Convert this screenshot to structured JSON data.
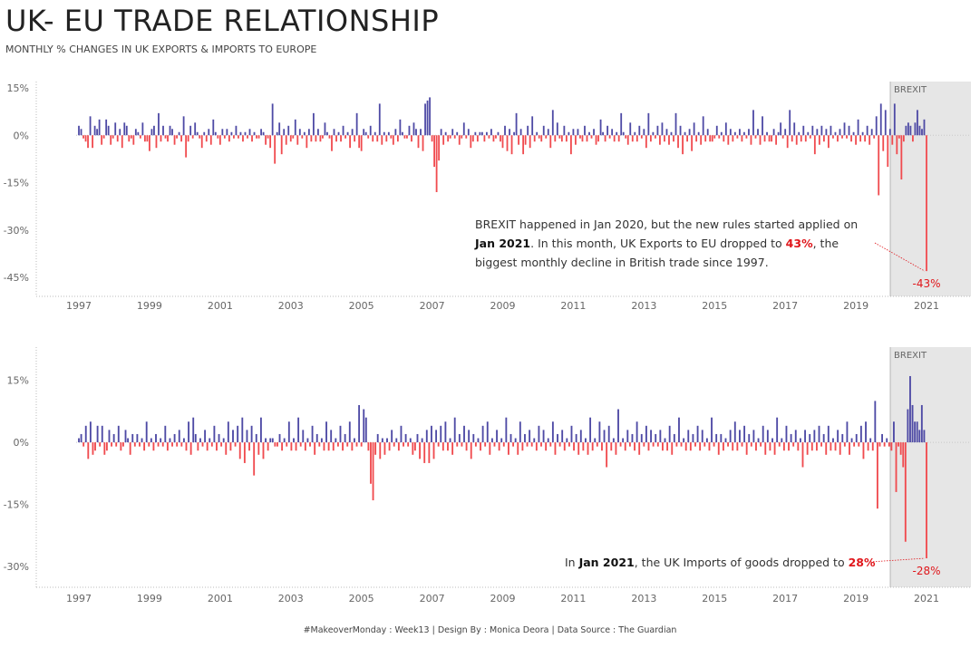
{
  "title": "UK- EU TRADE RELATIONSHIP",
  "subtitle": "MONTHLY % CHANGES IN UK EXPORTS & IMPORTS TO EUROPE",
  "footer": "#MakeoverMonday : Week13 | Design By : Monica Deora | Data Source : The Guardian",
  "colors": {
    "positive": "#4e4aa5",
    "negative": "#f04b4f",
    "brexit_band": "#e6e6e6",
    "highlight": "#e0161b"
  },
  "exports_annotation": {
    "line1": "BREXIT happened in Jan 2020, but the new rules started applied on",
    "bold1": "Jan 2021",
    "mid": ". In this month, UK Exports to EU dropped to ",
    "red": "43%",
    "tail": ", the",
    "line3": "biggest monthly decline in British trade since 1997."
  },
  "imports_annotation": {
    "pre": "In ",
    "bold": "Jan 2021",
    "mid": ", the UK Imports of goods dropped to ",
    "red": "28%"
  },
  "chart_data": [
    {
      "type": "bar",
      "title": "",
      "xlabel": "",
      "ylabel": "",
      "x_ticks": [
        "1997",
        "1999",
        "2001",
        "2003",
        "2005",
        "2007",
        "2009",
        "2011",
        "2013",
        "2015",
        "2017",
        "2019",
        "2021"
      ],
      "y_ticks": [
        "15%",
        "0%",
        "-15%",
        "-30%",
        "-45%"
      ],
      "y_tick_values": [
        15,
        0,
        -15,
        -30,
        -45
      ],
      "ylim": [
        -51,
        17
      ],
      "x_start": "1997-01",
      "x_end": "2021-01",
      "brexit_label": "BREXIT",
      "brexit_start": "2020-01",
      "end_label": "-43%",
      "grid": false,
      "series": [
        {
          "values": [
            3,
            2,
            -1,
            -2,
            -4,
            6,
            -4,
            3,
            2,
            5,
            -3,
            -1,
            5,
            3,
            -3,
            -1,
            4,
            -2,
            2,
            -4,
            4,
            3,
            -2,
            -1,
            -3,
            2,
            1,
            -1,
            4,
            -2,
            -2,
            -5,
            2,
            3,
            -4,
            7,
            -2,
            3,
            -1,
            -2,
            3,
            2,
            -3,
            -1,
            1,
            -2,
            6,
            -7,
            -2,
            3,
            -1,
            4,
            1,
            -1,
            -4,
            1,
            -2,
            2,
            -3,
            5,
            1,
            -1,
            -3,
            2,
            -1,
            2,
            -2,
            1,
            -1,
            3,
            -1,
            1,
            -2,
            1,
            -1,
            2,
            -2,
            1,
            -1,
            -1,
            2,
            1,
            -3,
            -1,
            -4,
            10,
            -9,
            1,
            4,
            -6,
            2,
            -3,
            3,
            -2,
            -1,
            5,
            -3,
            2,
            -1,
            1,
            -4,
            2,
            -2,
            7,
            -2,
            2,
            -2,
            -1,
            4,
            1,
            -1,
            -5,
            2,
            -2,
            1,
            -2,
            3,
            -1,
            1,
            -4,
            2,
            -2,
            7,
            -4,
            -5,
            2,
            1,
            -1,
            3,
            -2,
            1,
            -2,
            10,
            -3,
            1,
            -2,
            1,
            -1,
            -3,
            2,
            -2,
            5,
            1,
            -1,
            -1,
            3,
            -2,
            4,
            2,
            -4,
            2,
            -5,
            10,
            11,
            12,
            -2,
            -10,
            -18,
            -8,
            2,
            -3,
            1,
            -2,
            -1,
            2,
            -1,
            1,
            -3,
            -1,
            4,
            -1,
            2,
            -4,
            -2,
            1,
            -2,
            1,
            1,
            -2,
            1,
            -1,
            2,
            -2,
            -1,
            1,
            -2,
            -4,
            3,
            -5,
            2,
            -6,
            1,
            7,
            -3,
            2,
            -6,
            -3,
            3,
            -4,
            6,
            -2,
            1,
            -1,
            -2,
            3,
            -1,
            2,
            -4,
            8,
            -2,
            4,
            -1,
            -2,
            3,
            -2,
            1,
            -6,
            2,
            -3,
            2,
            -1,
            -2,
            3,
            -2,
            1,
            -1,
            2,
            -3,
            -2,
            5,
            1,
            -2,
            3,
            -1,
            2,
            -2,
            1,
            -2,
            7,
            1,
            -1,
            -3,
            4,
            -2,
            1,
            -2,
            3,
            -1,
            2,
            -4,
            7,
            -2,
            1,
            -1,
            3,
            -3,
            4,
            -2,
            2,
            -3,
            1,
            -2,
            7,
            -4,
            3,
            -6,
            1,
            -2,
            2,
            -5,
            4,
            -2,
            1,
            -3,
            6,
            -2,
            2,
            -2,
            -2,
            -1,
            3,
            -1,
            1,
            -2,
            4,
            -3,
            2,
            -2,
            1,
            -1,
            2,
            -2,
            1,
            -1,
            2,
            -3,
            8,
            -1,
            2,
            -3,
            6,
            -2,
            1,
            -2,
            -2,
            2,
            -3,
            1,
            4,
            -1,
            2,
            -4,
            8,
            -2,
            4,
            -3,
            1,
            -2,
            3,
            -2,
            1,
            -1,
            3,
            -6,
            2,
            -3,
            3,
            -2,
            2,
            -4,
            3,
            -1,
            1,
            -2,
            2,
            -1,
            4,
            -1,
            3,
            -2,
            1,
            -3,
            5,
            -2,
            1,
            -2,
            3,
            -3,
            2,
            -1,
            6,
            -19,
            10,
            -5,
            8,
            -10,
            2,
            -3,
            10,
            -6,
            -1,
            -14,
            -2,
            3,
            4,
            3,
            -2,
            4,
            8,
            3,
            2,
            5,
            -43
          ],
          "end_value": -43
        }
      ]
    },
    {
      "type": "bar",
      "title": "",
      "xlabel": "",
      "ylabel": "",
      "x_ticks": [
        "1997",
        "1999",
        "2001",
        "2003",
        "2005",
        "2007",
        "2009",
        "2011",
        "2013",
        "2015",
        "2017",
        "2019",
        "2021"
      ],
      "y_ticks": [
        "15%",
        "0%",
        "-15%",
        "-30%"
      ],
      "y_tick_values": [
        15,
        0,
        -15,
        -30
      ],
      "ylim": [
        -35,
        23
      ],
      "x_start": "1997-01",
      "x_end": "2021-01",
      "brexit_label": "BREXIT",
      "brexit_start": "2020-01",
      "end_label": "-28%",
      "grid": false,
      "series": [
        {
          "values": [
            1,
            2,
            -1,
            4,
            -4,
            5,
            -3,
            -2,
            4,
            -1,
            4,
            -3,
            -2,
            3,
            -1,
            2,
            -1,
            4,
            -2,
            -1,
            3,
            1,
            -3,
            2,
            -1,
            2,
            -1,
            1,
            -2,
            5,
            -1,
            1,
            -2,
            2,
            -1,
            1,
            -1,
            4,
            -2,
            1,
            -1,
            2,
            -1,
            3,
            -1,
            1,
            -2,
            5,
            -3,
            6,
            2,
            -2,
            1,
            -1,
            3,
            -2,
            1,
            -1,
            4,
            -2,
            2,
            -1,
            1,
            -3,
            5,
            -2,
            3,
            -1,
            4,
            -4,
            6,
            -5,
            3,
            -2,
            4,
            -8,
            2,
            -3,
            6,
            -4,
            1,
            -2,
            1,
            1,
            -1,
            -1,
            2,
            -2,
            1,
            -1,
            5,
            -2,
            1,
            -2,
            6,
            -1,
            3,
            -2,
            1,
            -1,
            4,
            -3,
            2,
            -1,
            1,
            -2,
            5,
            -2,
            3,
            -2,
            1,
            -1,
            4,
            -2,
            2,
            -1,
            5,
            -2,
            1,
            -1,
            9,
            -1,
            8,
            6,
            -2,
            -10,
            -14,
            -3,
            2,
            -4,
            1,
            -3,
            1,
            -2,
            3,
            -1,
            1,
            -2,
            4,
            -1,
            2,
            -1,
            1,
            -3,
            -2,
            2,
            -4,
            1,
            -5,
            3,
            -5,
            4,
            -4,
            3,
            -1,
            4,
            -2,
            5,
            -2,
            1,
            -3,
            6,
            -1,
            2,
            -1,
            4,
            -2,
            3,
            -4,
            2,
            -1,
            1,
            -2,
            4,
            -1,
            5,
            -3,
            1,
            -1,
            3,
            -2,
            1,
            -1,
            6,
            -3,
            2,
            -1,
            1,
            -3,
            5,
            -2,
            2,
            -1,
            3,
            -1,
            1,
            -2,
            4,
            -1,
            3,
            -2,
            1,
            -1,
            5,
            -3,
            2,
            -1,
            3,
            -2,
            1,
            -1,
            4,
            -2,
            2,
            -3,
            3,
            -2,
            1,
            -3,
            6,
            -2,
            1,
            -1,
            5,
            -2,
            3,
            -6,
            4,
            -2,
            1,
            -3,
            8,
            -1,
            1,
            -2,
            3,
            -1,
            2,
            -2,
            5,
            -3,
            2,
            -1,
            4,
            -2,
            3,
            -1,
            2,
            -1,
            3,
            -2,
            1,
            -2,
            4,
            -3,
            2,
            -1,
            6,
            -1,
            1,
            -2,
            3,
            -2,
            2,
            -1,
            4,
            -2,
            3,
            -1,
            1,
            -2,
            6,
            -1,
            2,
            -3,
            2,
            -2,
            1,
            -1,
            3,
            -2,
            5,
            -2,
            3,
            -1,
            4,
            -3,
            2,
            -1,
            3,
            -2,
            1,
            -1,
            4,
            -3,
            3,
            -2,
            1,
            -3,
            6,
            -1,
            1,
            -2,
            4,
            -2,
            2,
            -1,
            3,
            -2,
            1,
            -6,
            3,
            -3,
            2,
            -2,
            3,
            -2,
            4,
            -1,
            2,
            -3,
            4,
            -2,
            1,
            -2,
            3,
            -3,
            2,
            -1,
            5,
            -3,
            1,
            -1,
            2,
            -1,
            4,
            -4,
            5,
            -2,
            1,
            -2,
            10,
            -16,
            -1,
            2,
            -1,
            1,
            -1,
            -2,
            5,
            -12,
            -1,
            -3,
            -6,
            -24,
            8,
            16,
            9,
            5,
            5,
            3,
            9,
            3,
            -28
          ],
          "end_value": -28
        }
      ]
    }
  ]
}
